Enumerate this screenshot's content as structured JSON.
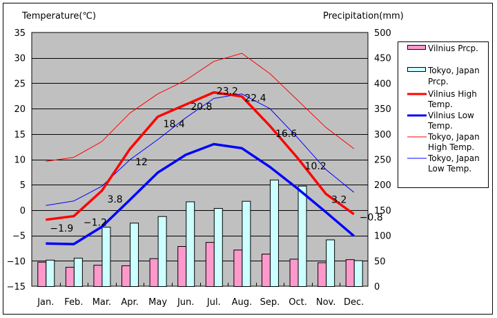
{
  "chart_data": {
    "type": "bar+line",
    "categories": [
      "Jan.",
      "Feb.",
      "Mar.",
      "Apr.",
      "May",
      "Jun.",
      "Jul.",
      "Aug.",
      "Sep.",
      "Oct.",
      "Nov.",
      "Dec."
    ],
    "left_axis": {
      "title": "Temperature(℃)",
      "ylim": [
        -15,
        35
      ],
      "ticks": [
        "35",
        "30",
        "25",
        "20",
        "15",
        "10",
        "5",
        "0",
        "−5",
        "−10",
        "−15"
      ],
      "tick_values": [
        35,
        30,
        25,
        20,
        15,
        10,
        5,
        0,
        -5,
        -10,
        -15
      ]
    },
    "right_axis": {
      "title": "Precipitation(mm)",
      "ylim": [
        0,
        500
      ],
      "ticks": [
        "500",
        "450",
        "400",
        "350",
        "300",
        "250",
        "200",
        "150",
        "100",
        "50",
        "0"
      ],
      "tick_values": [
        500,
        450,
        400,
        350,
        300,
        250,
        200,
        150,
        100,
        50,
        0
      ]
    },
    "grid": true,
    "legend_position": "right",
    "bar_series": [
      {
        "name": "Vilnius Prcp.",
        "legend_lines": [
          "Vilnius Prcp."
        ],
        "color": "#ff99cc",
        "axis": "right",
        "values": [
          48,
          38,
          42,
          41,
          55,
          79,
          87,
          72,
          64,
          54,
          47,
          53
        ]
      },
      {
        "name": "Tokyo, Japan Prcp.",
        "legend_lines": [
          "Tokyo, Japan",
          "Prcp."
        ],
        "color": "#ccffff",
        "axis": "right",
        "values": [
          52,
          56,
          117,
          125,
          138,
          167,
          154,
          168,
          210,
          198,
          92,
          51
        ]
      }
    ],
    "line_series": [
      {
        "name": "Vilnius High Temp.",
        "legend_lines": [
          "Vilnius High",
          "Temp."
        ],
        "color": "#ff0000",
        "width": "thick",
        "axis": "left",
        "values": [
          -1.9,
          -1.2,
          3.8,
          12,
          18.4,
          20.8,
          23.2,
          22.4,
          16.6,
          10.2,
          3.2,
          -0.8
        ],
        "data_labels": [
          "−1.9",
          "−1.2",
          "3.8",
          "12",
          "18.4",
          "20.8",
          "23.2",
          "22.4",
          "16.6",
          "10.2",
          "3.2",
          "−0.8"
        ]
      },
      {
        "name": "Vilnius Low Temp.",
        "legend_lines": [
          "Vilnius Low",
          "Temp."
        ],
        "color": "#0000ff",
        "width": "thick",
        "axis": "left",
        "values": [
          -6.6,
          -6.7,
          -3.3,
          2.0,
          7.4,
          10.9,
          13.0,
          12.2,
          8.5,
          4.2,
          -0.4,
          -5.1
        ]
      },
      {
        "name": "Tokyo, Japan High Temp.",
        "legend_lines": [
          "Tokyo, Japan",
          "High Temp."
        ],
        "color": "#ff0000",
        "width": "thin",
        "axis": "left",
        "values": [
          9.6,
          10.4,
          13.5,
          19.1,
          22.9,
          25.6,
          29.3,
          30.9,
          26.9,
          21.6,
          16.3,
          12.1
        ]
      },
      {
        "name": "Tokyo, Japan Low Temp.",
        "legend_lines": [
          "Tokyo, Japan",
          "Low Temp."
        ],
        "color": "#0000ff",
        "width": "thin",
        "axis": "left",
        "values": [
          0.9,
          1.8,
          4.7,
          9.9,
          13.9,
          18.2,
          22.0,
          22.9,
          20.0,
          14.2,
          8.0,
          3.5
        ]
      }
    ],
    "plot_background": "#c0c0c0"
  }
}
